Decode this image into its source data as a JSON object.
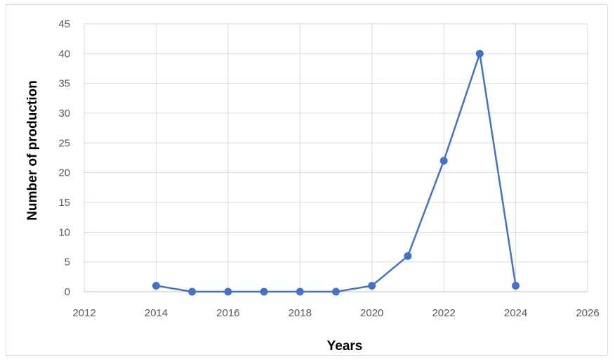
{
  "chart_data": {
    "type": "line",
    "title": "",
    "xlabel": "Years",
    "ylabel": "Number of production",
    "xlim": [
      2012,
      2026
    ],
    "ylim": [
      0,
      45
    ],
    "x_ticks": [
      2012,
      2014,
      2016,
      2018,
      2020,
      2022,
      2024,
      2026
    ],
    "y_ticks": [
      0,
      5,
      10,
      15,
      20,
      25,
      30,
      35,
      40,
      45
    ],
    "grid": true,
    "legend": "none",
    "series": [
      {
        "color": "#4472c4",
        "points": [
          {
            "x": 2014,
            "y": 1
          },
          {
            "x": 2015,
            "y": 0
          },
          {
            "x": 2016,
            "y": 0
          },
          {
            "x": 2017,
            "y": 0
          },
          {
            "x": 2018,
            "y": 0
          },
          {
            "x": 2019,
            "y": 0
          },
          {
            "x": 2020,
            "y": 1
          },
          {
            "x": 2021,
            "y": 6
          },
          {
            "x": 2022,
            "y": 22
          },
          {
            "x": 2023,
            "y": 40
          },
          {
            "x": 2024,
            "y": 1
          }
        ]
      }
    ],
    "colors": {
      "grid": "#d9d9d9",
      "axis": "#bfbfbf"
    }
  }
}
